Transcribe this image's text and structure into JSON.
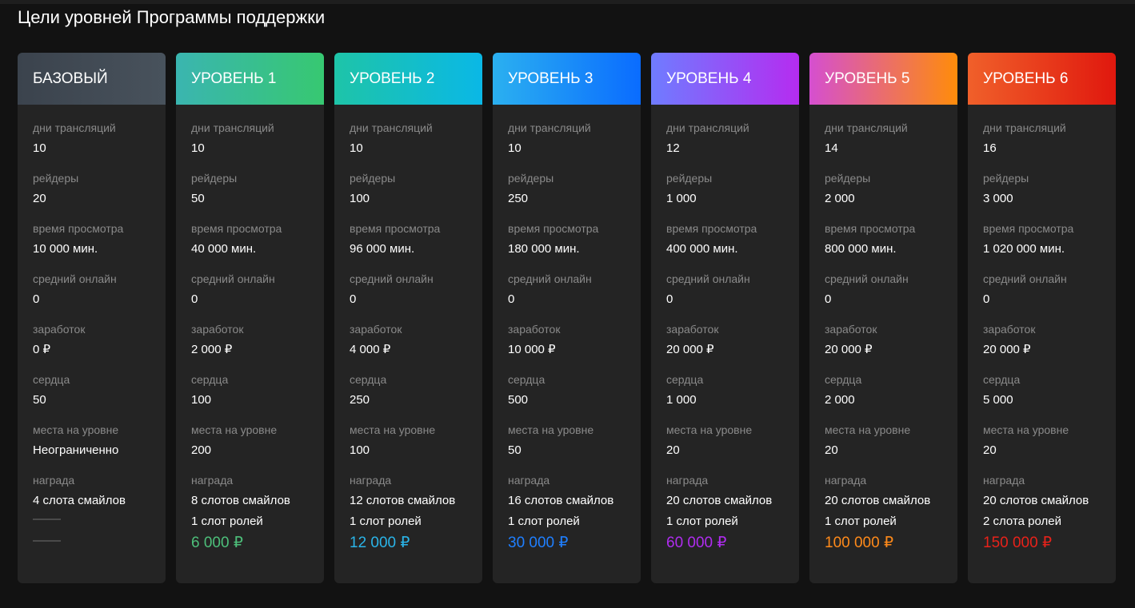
{
  "page": {
    "title": "Цели уровней Программы поддержки"
  },
  "labels": {
    "stream_days": "дни трансляций",
    "raiders": "рейдеры",
    "watch_time": "время просмотра",
    "avg_online": "средний онлайн",
    "earnings": "заработок",
    "hearts": "сердца",
    "slots": "места на уровне",
    "reward": "награда"
  },
  "levels": [
    {
      "name": "БАЗОВЫЙ",
      "stream_days": "10",
      "raiders": "20",
      "watch_time": "10 000 мин.",
      "avg_online": "0",
      "earnings": "0 ₽",
      "hearts": "50",
      "slots": "Неограниченно",
      "reward_lines": [
        "4 слота смайлов"
      ],
      "price": "",
      "price_color": "",
      "header_gradient": [
        "#3b434d",
        "#48525c"
      ]
    },
    {
      "name": "УРОВЕНЬ 1",
      "stream_days": "10",
      "raiders": "50",
      "watch_time": "40 000 мин.",
      "avg_online": "0",
      "earnings": "2 000 ₽",
      "hearts": "100",
      "slots": "200",
      "reward_lines": [
        "8 слотов смайлов",
        "1 слот ролей"
      ],
      "price": "6 000 ₽",
      "price_color": "#4dbf7a",
      "header_gradient": [
        "#3ab5b0",
        "#37c871"
      ]
    },
    {
      "name": "УРОВЕНЬ 2",
      "stream_days": "10",
      "raiders": "100",
      "watch_time": "96 000 мин.",
      "avg_online": "0",
      "earnings": "4 000 ₽",
      "hearts": "250",
      "slots": "100",
      "reward_lines": [
        "12 слотов смайлов",
        "1 слот ролей"
      ],
      "price": "12 000 ₽",
      "price_color": "#2ab4e8",
      "header_gradient": [
        "#1ec4a8",
        "#0ab8e6"
      ]
    },
    {
      "name": "УРОВЕНЬ 3",
      "stream_days": "10",
      "raiders": "250",
      "watch_time": "180 000 мин.",
      "avg_online": "0",
      "earnings": "10 000 ₽",
      "hearts": "500",
      "slots": "50",
      "reward_lines": [
        "16 слотов смайлов",
        "1 слот ролей"
      ],
      "price": "30 000 ₽",
      "price_color": "#1f7fff",
      "header_gradient": [
        "#2bb0f0",
        "#0a6cff"
      ]
    },
    {
      "name": "УРОВЕНЬ 4",
      "stream_days": "12",
      "raiders": "1 000",
      "watch_time": "400 000 мин.",
      "avg_online": "0",
      "earnings": "20 000 ₽",
      "hearts": "1 000",
      "slots": "20",
      "reward_lines": [
        "20 слотов смайлов",
        "1 слот ролей"
      ],
      "price": "60 000 ₽",
      "price_color": "#b02cf0",
      "header_gradient": [
        "#6f7cff",
        "#b52cf0"
      ]
    },
    {
      "name": "УРОВЕНЬ 5",
      "stream_days": "14",
      "raiders": "2 000",
      "watch_time": "800 000 мин.",
      "avg_online": "0",
      "earnings": "20 000 ₽",
      "hearts": "2 000",
      "slots": "20",
      "reward_lines": [
        "20 слотов смайлов",
        "1 слот ролей"
      ],
      "price": "100 000 ₽",
      "price_color": "#ff8a1a",
      "header_gradient": [
        "#d54fd0",
        "#ff8c0a"
      ]
    },
    {
      "name": "УРОВЕНЬ 6",
      "stream_days": "16",
      "raiders": "3 000",
      "watch_time": "1 020 000 мин.",
      "avg_online": "0",
      "earnings": "20 000 ₽",
      "hearts": "5 000",
      "slots": "20",
      "reward_lines": [
        "20 слотов смайлов",
        "2 слота ролей"
      ],
      "price": "150 000 ₽",
      "price_color": "#e8221a",
      "header_gradient": [
        "#f0602a",
        "#e0180e"
      ]
    }
  ]
}
